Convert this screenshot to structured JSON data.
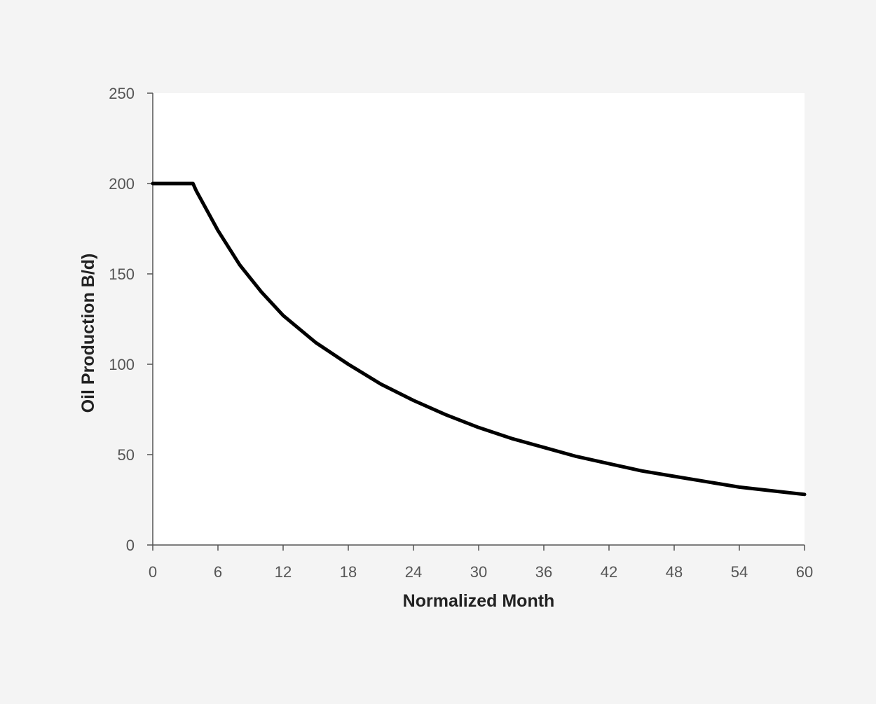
{
  "colors": {
    "page_background": "#f4f4f4",
    "plot_background": "#ffffff",
    "axis": "#555555",
    "series_line": "#000000"
  },
  "chart_data": {
    "type": "line",
    "title": "",
    "xlabel": "Normalized Month",
    "ylabel": "Oil Production B/d)",
    "xlim": [
      0,
      60
    ],
    "ylim": [
      0,
      250
    ],
    "x_ticks": [
      0,
      6,
      12,
      18,
      24,
      30,
      36,
      42,
      48,
      54,
      60
    ],
    "y_ticks": [
      0,
      50,
      100,
      150,
      200,
      250
    ],
    "grid": false,
    "legend": "none",
    "series": [
      {
        "x": [
          0,
          1,
          2,
          3,
          3.7,
          4,
          5,
          6,
          8,
          10,
          12,
          15,
          18,
          21,
          24,
          27,
          30,
          33,
          36,
          39,
          42,
          45,
          48,
          51,
          54,
          57,
          60
        ],
        "y": [
          200,
          200,
          200,
          200,
          200,
          196,
          185,
          174,
          155,
          140,
          127,
          112,
          100,
          89,
          80,
          72,
          65,
          59,
          54,
          49,
          45,
          41,
          38,
          35,
          32,
          30,
          28
        ]
      }
    ]
  }
}
